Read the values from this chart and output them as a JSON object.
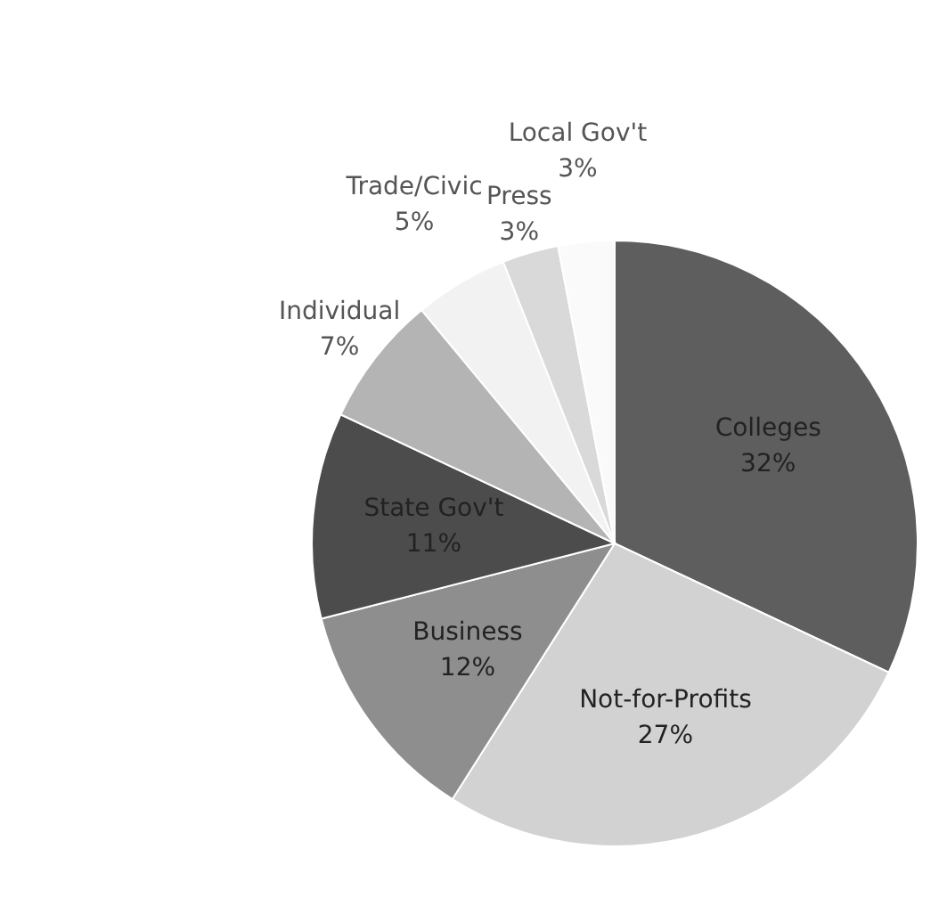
{
  "chart_data": {
    "type": "pie",
    "categories": [
      "Colleges",
      "Not-for-Profits",
      "Business",
      "State Gov't",
      "Individual",
      "Trade/Civic",
      "Press",
      "Local Gov't"
    ],
    "values": [
      32,
      27,
      12,
      11,
      7,
      5,
      3,
      3
    ],
    "value_labels": [
      "32%",
      "27%",
      "12%",
      "11%",
      "7%",
      "5%",
      "3%",
      "3%"
    ],
    "colors": [
      "#5e5e5e",
      "#d2d2d2",
      "#8e8e8e",
      "#4c4c4c",
      "#b4b4b4",
      "#f2f2f2",
      "#d9d9d9",
      "#fafafa"
    ],
    "legend": false
  }
}
